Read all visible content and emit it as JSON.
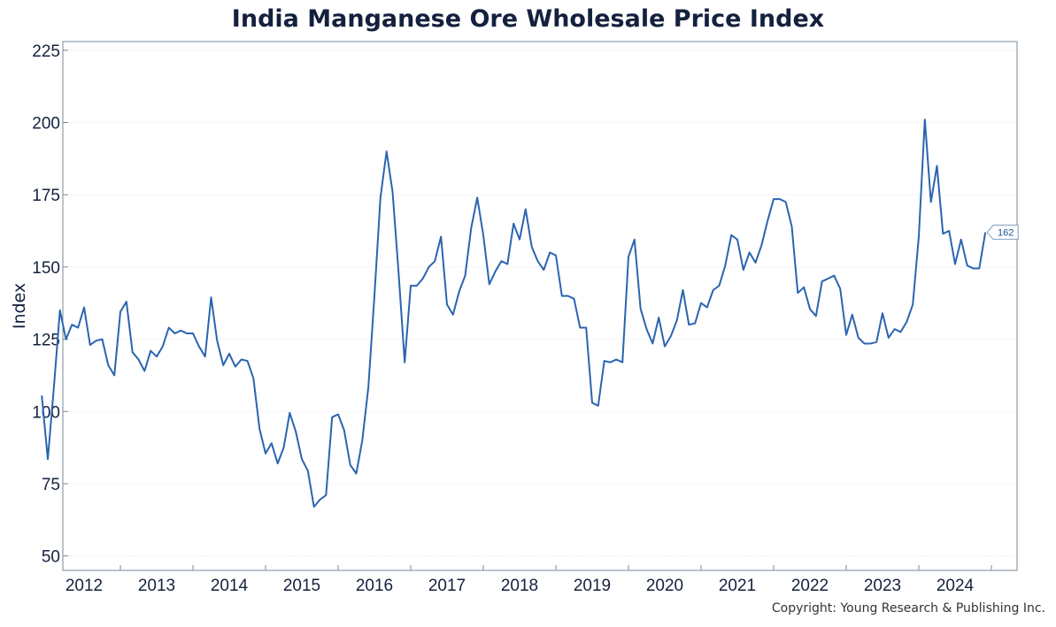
{
  "chart_data": {
    "type": "line",
    "title": "India Manganese Ore Wholesale Price Index",
    "ylabel": "Index",
    "xlabel": "",
    "ylim": [
      45,
      228
    ],
    "yticks": [
      50,
      75,
      100,
      125,
      150,
      175,
      200,
      225
    ],
    "xticks": [
      "2012",
      "2013",
      "2014",
      "2015",
      "2016",
      "2017",
      "2018",
      "2019",
      "2020",
      "2021",
      "2022",
      "2023",
      "2024"
    ],
    "grid": "horizontal dotted",
    "line_color": "#2b64b0",
    "end_label": "162",
    "series": [
      {
        "start": "2011-12",
        "values": [
          105.5,
          83.5,
          108,
          135,
          125,
          130,
          129,
          136,
          123,
          124.5,
          125,
          116,
          112.5,
          134.5,
          138,
          120.5,
          118,
          114,
          121,
          119,
          122.5,
          129,
          127,
          128,
          127,
          127,
          122.5,
          119,
          139.5,
          124.5,
          116,
          120,
          115.5,
          118,
          117.5,
          111.5,
          94,
          85.5,
          89,
          82,
          87.5,
          99.5,
          93,
          83.5,
          79.5,
          67,
          69.5,
          71,
          98,
          99,
          93.5,
          81.5,
          78.5,
          90,
          108.5,
          140,
          174,
          190,
          176,
          148,
          117,
          143.5,
          143.5,
          146,
          150,
          152,
          160.5,
          137,
          133.5,
          141.5,
          147,
          163.5,
          174,
          161,
          144,
          148.5,
          152,
          151,
          165,
          159.5,
          170,
          157,
          152,
          149,
          155,
          154,
          140,
          140,
          139,
          129,
          129,
          103,
          102,
          117.5,
          117,
          118,
          117,
          153.5,
          159.5,
          135.5,
          128.5,
          123.5,
          132.5,
          122.5,
          126,
          131.5,
          142,
          130,
          130.5,
          137.5,
          136,
          142,
          143.5,
          150.5,
          161,
          159.5,
          149,
          155,
          151.5,
          157.5,
          166,
          173.5,
          173.5,
          172.5,
          164,
          141,
          143,
          135.5,
          133,
          145,
          146,
          147,
          142.5,
          126.5,
          133.5,
          125.5,
          123.5,
          123.5,
          124,
          134,
          125.5,
          128.5,
          127.5,
          131,
          137,
          160.5,
          201,
          172.5,
          185,
          161.5,
          162.5,
          151,
          159.5,
          150.5,
          149.5,
          149.5,
          162
        ]
      }
    ]
  },
  "copyright": "Copyright: Young Research & Publishing Inc."
}
